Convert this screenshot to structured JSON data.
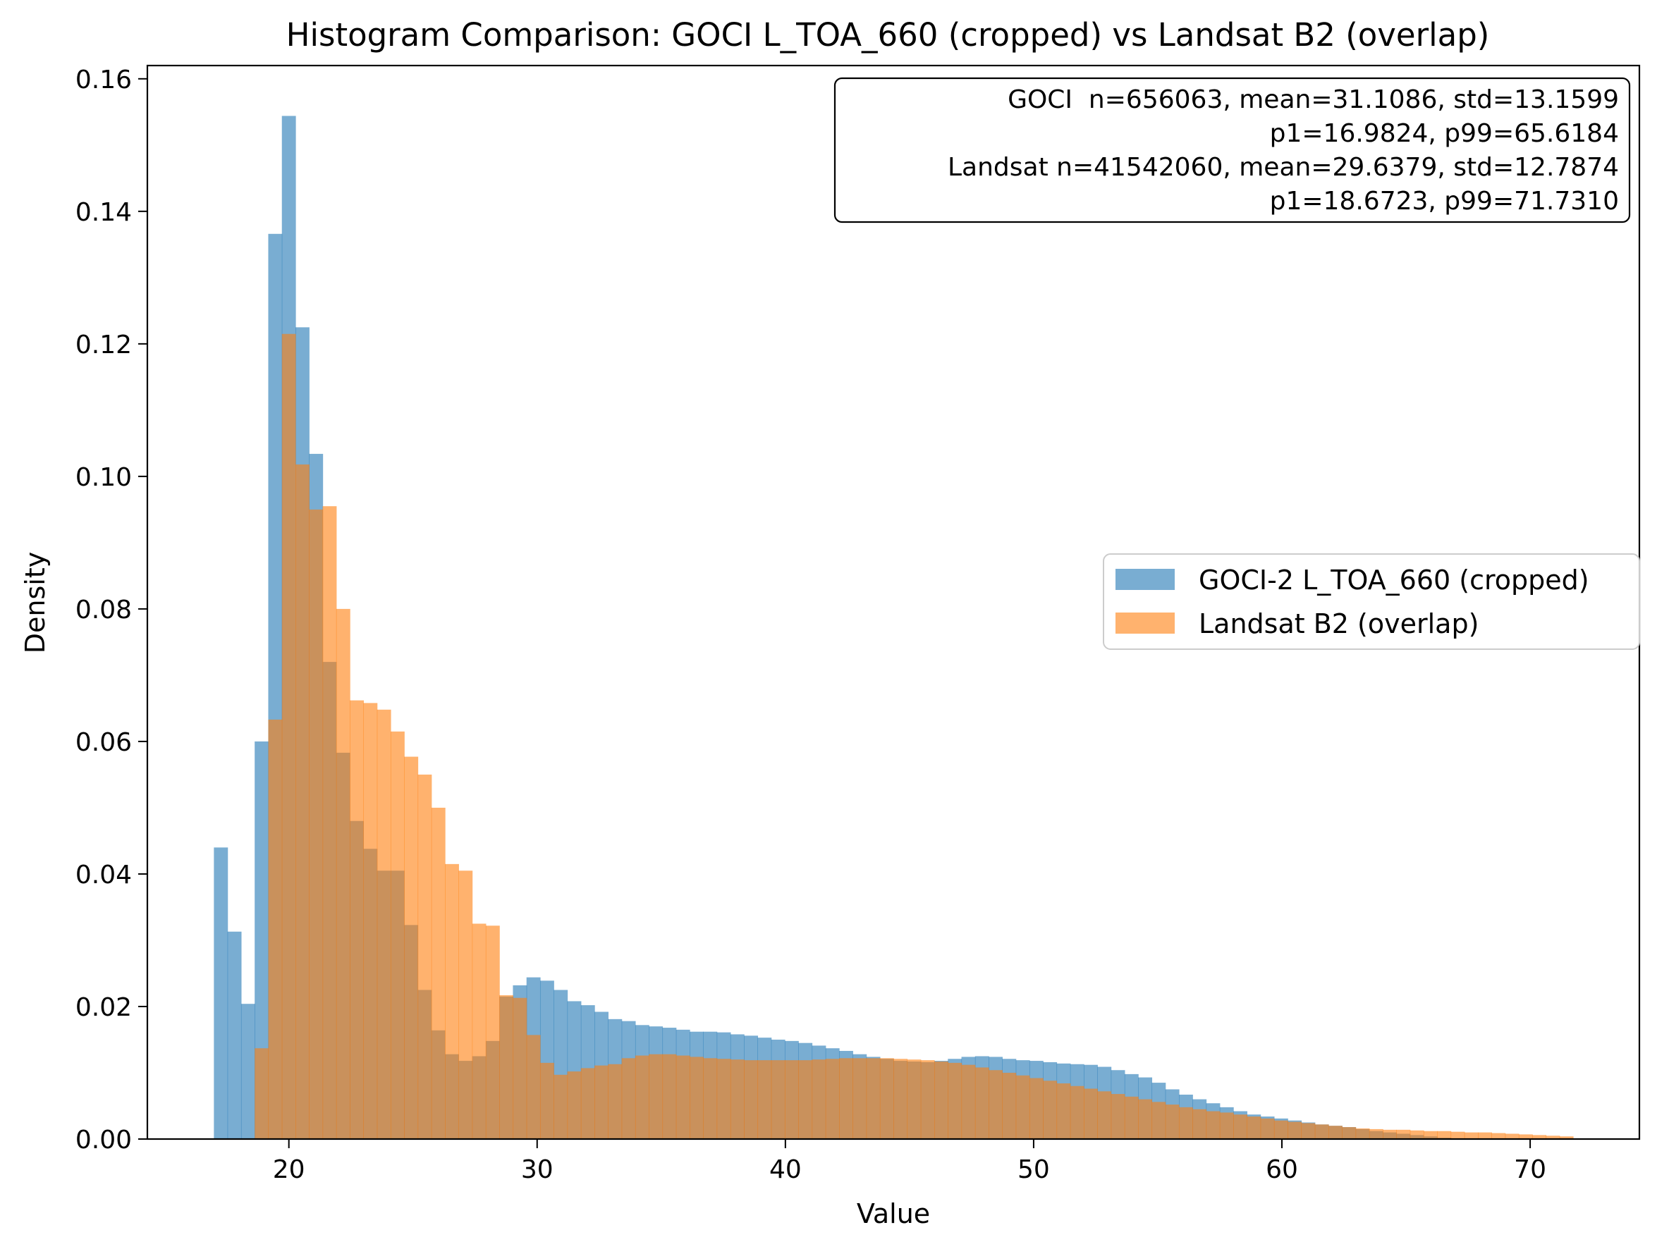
{
  "chart_data": {
    "type": "histogram",
    "title": "Histogram Comparison: GOCI L_TOA_660 (cropped) vs Landsat B2 (overlap)",
    "xlabel": "Value",
    "ylabel": "Density",
    "xlim": [
      14.3,
      74.4
    ],
    "ylim": [
      0,
      0.162
    ],
    "xticks": [
      20,
      30,
      40,
      50,
      60,
      70
    ],
    "yticks": [
      0.0,
      0.02,
      0.04,
      0.06,
      0.08,
      0.1,
      0.12,
      0.14,
      0.16
    ],
    "xtick_labels": [
      "20",
      "30",
      "40",
      "50",
      "60",
      "70"
    ],
    "ytick_labels": [
      "0.00",
      "0.02",
      "0.04",
      "0.06",
      "0.08",
      "0.10",
      "0.12",
      "0.14",
      "0.16"
    ],
    "grid": false,
    "legend_position": "center-right",
    "annotation_lines": [
      "GOCI  n=656063, mean=31.1086, std=13.1599",
      "p1=16.9824, p99=65.6184",
      "Landsat n=41542060, mean=29.6379, std=12.7874",
      "p1=18.6723, p99=71.7310"
    ],
    "bin_start": 16.98,
    "bin_width": 0.5475,
    "series": [
      {
        "name": "GOCI-2 L_TOA_660 (cropped)",
        "color": "#1f77b4",
        "opacity": 0.6,
        "values": [
          0.044,
          0.0313,
          0.0204,
          0.06,
          0.1366,
          0.1544,
          0.1225,
          0.1034,
          0.072,
          0.0583,
          0.048,
          0.0438,
          0.0405,
          0.0405,
          0.0323,
          0.0225,
          0.0164,
          0.0128,
          0.0118,
          0.0125,
          0.0148,
          0.0215,
          0.0232,
          0.0244,
          0.0239,
          0.0225,
          0.0208,
          0.0202,
          0.0192,
          0.0181,
          0.0178,
          0.0172,
          0.017,
          0.0168,
          0.0165,
          0.0162,
          0.0162,
          0.0161,
          0.0158,
          0.0156,
          0.0153,
          0.015,
          0.0148,
          0.0145,
          0.0141,
          0.0137,
          0.0133,
          0.0128,
          0.0124,
          0.0121,
          0.0118,
          0.0117,
          0.0116,
          0.0118,
          0.0121,
          0.0124,
          0.0125,
          0.0124,
          0.0121,
          0.0119,
          0.0118,
          0.0116,
          0.0114,
          0.0113,
          0.0112,
          0.0109,
          0.0104,
          0.0098,
          0.0093,
          0.0085,
          0.0075,
          0.0067,
          0.006,
          0.0054,
          0.0048,
          0.0042,
          0.0037,
          0.0034,
          0.0031,
          0.0028,
          0.0025,
          0.0022,
          0.002,
          0.0018,
          0.0015,
          0.0012,
          0.001,
          0.0008,
          0.0006,
          0.0004,
          0.0002
        ]
      },
      {
        "name": "Landsat B2 (overlap)",
        "color": "#ff7f0e",
        "opacity": 0.6,
        "values": [
          0.0,
          0.0,
          0.0,
          0.0137,
          0.0633,
          0.1215,
          0.1018,
          0.095,
          0.0955,
          0.08,
          0.0662,
          0.0658,
          0.0648,
          0.0615,
          0.0577,
          0.055,
          0.05,
          0.0415,
          0.0405,
          0.0325,
          0.0322,
          0.0217,
          0.0213,
          0.0157,
          0.0115,
          0.0097,
          0.0102,
          0.0107,
          0.0111,
          0.0113,
          0.0122,
          0.0126,
          0.0128,
          0.0128,
          0.0126,
          0.0124,
          0.0122,
          0.0121,
          0.012,
          0.0119,
          0.0119,
          0.0119,
          0.0119,
          0.0119,
          0.012,
          0.0121,
          0.0122,
          0.0122,
          0.0122,
          0.0122,
          0.0121,
          0.012,
          0.0119,
          0.0117,
          0.0115,
          0.0112,
          0.0108,
          0.0104,
          0.01,
          0.0096,
          0.0092,
          0.0088,
          0.0084,
          0.008,
          0.0076,
          0.0072,
          0.0068,
          0.0064,
          0.006,
          0.0056,
          0.0052,
          0.0048,
          0.0045,
          0.0042,
          0.004,
          0.0037,
          0.0034,
          0.0031,
          0.0028,
          0.0026,
          0.0024,
          0.0022,
          0.002,
          0.0018,
          0.0016,
          0.0015,
          0.0014,
          0.0014,
          0.0013,
          0.0012,
          0.0012,
          0.0011,
          0.001,
          0.001,
          0.0009,
          0.0008,
          0.0007,
          0.0006,
          0.0005,
          0.0004
        ]
      }
    ]
  }
}
